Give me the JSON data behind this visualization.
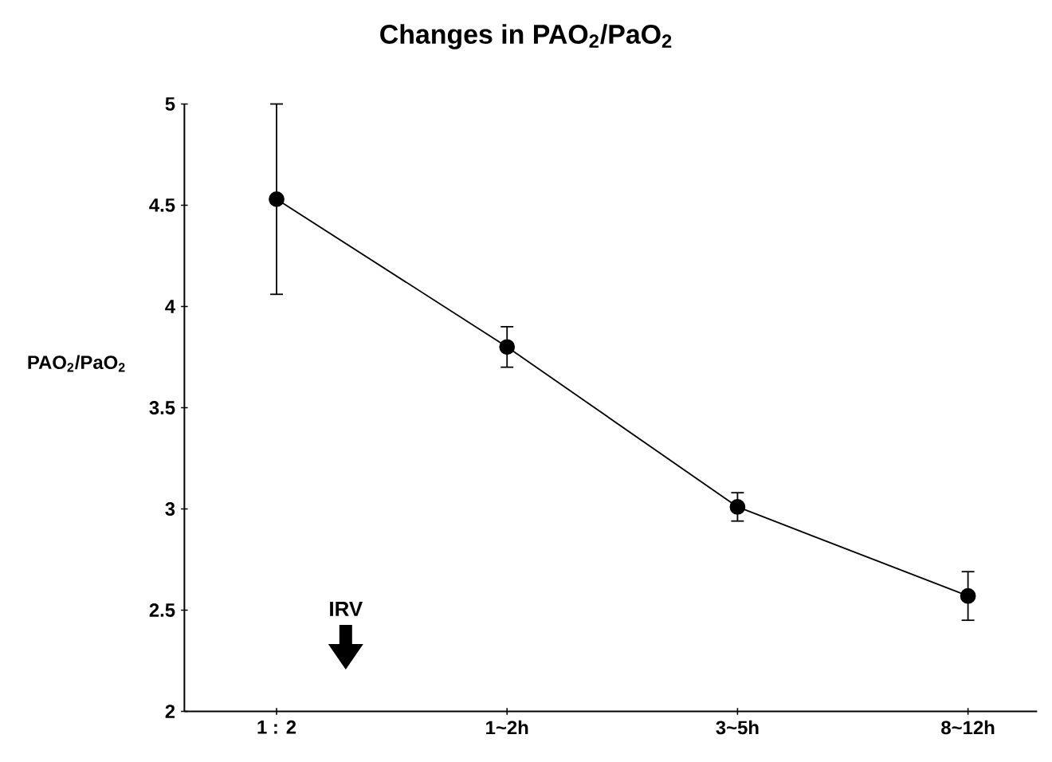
{
  "chart_data": {
    "type": "line",
    "title": "Changes in PAO$_{2}$/PaO$_{2}$",
    "ylabel": "PAO$_{2}$/PaO$_{2}$",
    "categories": [
      "1 : 2",
      "1~2h",
      "3~5h",
      "8~12h"
    ],
    "series": [
      {
        "color": "#000000",
        "values": [
          4.53,
          3.8,
          3.01,
          2.57
        ],
        "errors": [
          0.47,
          0.1,
          0.07,
          0.12
        ]
      }
    ],
    "ylim": [
      2,
      5
    ],
    "yticks": [
      2,
      2.5,
      3,
      3.5,
      4,
      4.5,
      5
    ],
    "marker": "circle",
    "line_style": "solid",
    "annotations": [
      "IRV"
    ]
  }
}
